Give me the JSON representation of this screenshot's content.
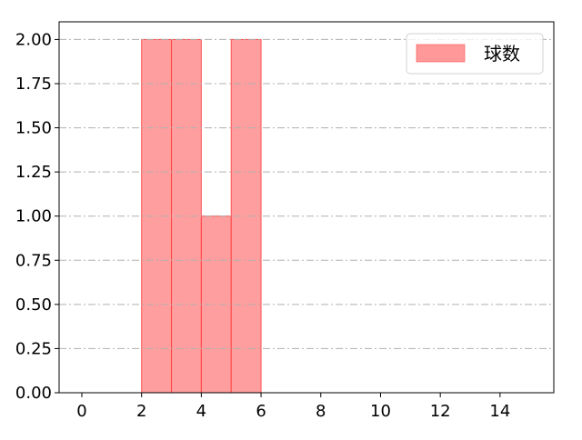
{
  "chart_data": {
    "type": "bar",
    "histogram": true,
    "bins": [
      [
        2,
        3
      ],
      [
        3,
        4
      ],
      [
        4,
        5
      ],
      [
        5,
        6
      ]
    ],
    "values": [
      2,
      2,
      1,
      2
    ],
    "series": [
      {
        "name": "球数",
        "values": [
          2,
          2,
          1,
          2
        ]
      }
    ],
    "title": "",
    "xlabel": "",
    "ylabel": "",
    "xlim": [
      -0.76,
      15.8
    ],
    "ylim": [
      0,
      2.1
    ],
    "xticks": [
      0,
      2,
      4,
      6,
      8,
      10,
      12,
      14
    ],
    "xtick_labels": [
      "0",
      "2",
      "4",
      "6",
      "8",
      "10",
      "12",
      "14"
    ],
    "yticks": [
      0,
      0.25,
      0.5,
      0.75,
      1.0,
      1.25,
      1.5,
      1.75,
      2.0
    ],
    "ytick_labels": [
      "0.00",
      "0.25",
      "0.50",
      "0.75",
      "1.00",
      "1.25",
      "1.50",
      "1.75",
      "2.00"
    ],
    "grid": "y, dash-dot, gray",
    "legend": {
      "position": "top-right",
      "entries": [
        "球数"
      ]
    },
    "colors": {
      "bar_fill": "#ff9999",
      "bar_edge": "#ff3333",
      "grid": "#b0b0b0"
    }
  }
}
